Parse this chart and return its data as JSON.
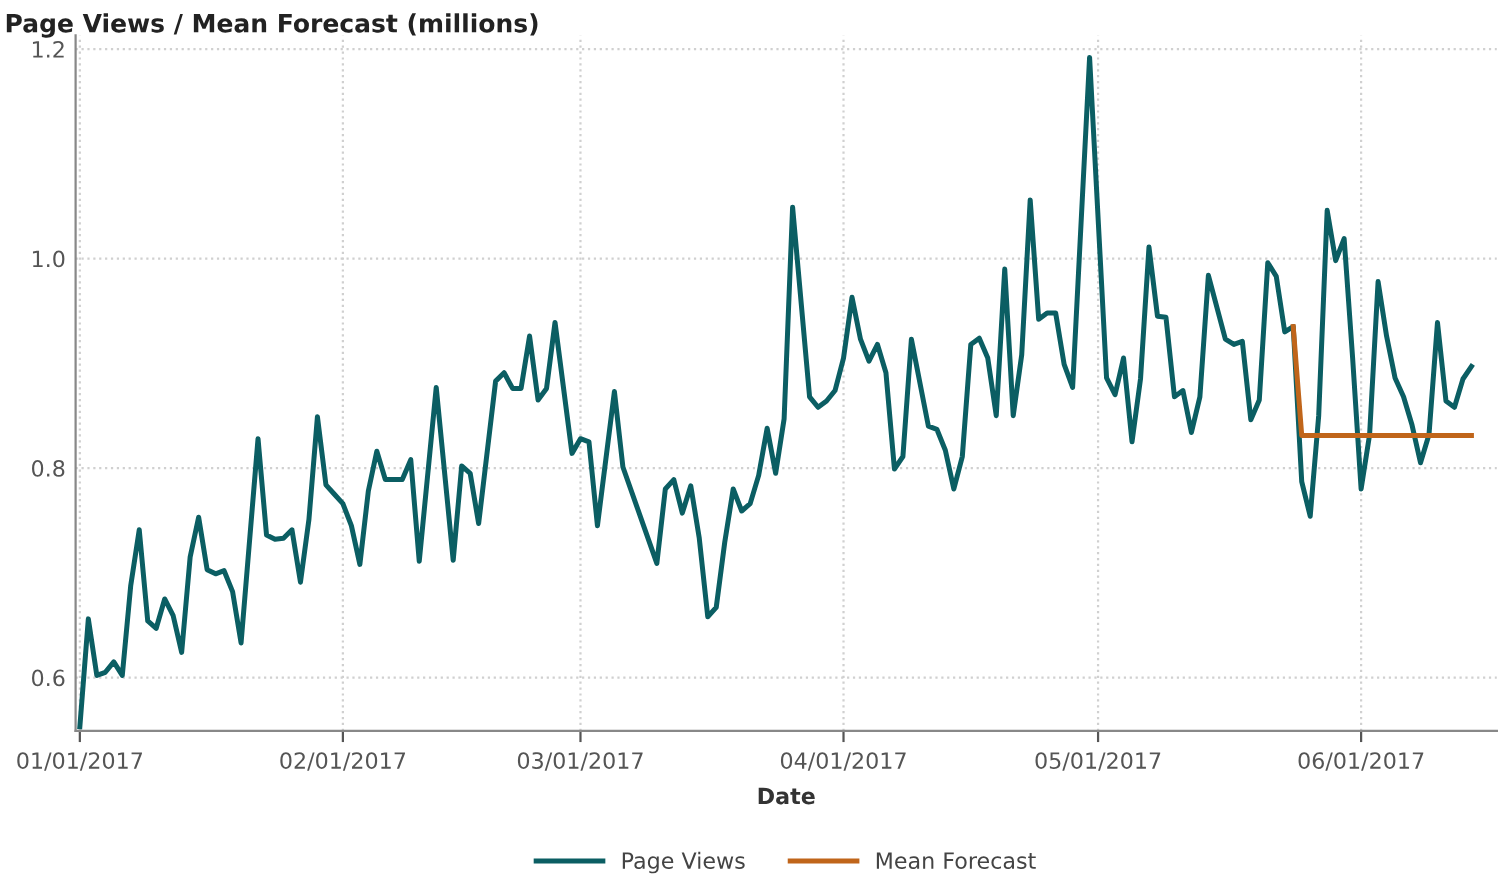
{
  "chart_data": {
    "type": "line",
    "title": "Page Views / Mean Forecast (millions)",
    "xlabel": "Date",
    "xlim": [
      "2016-12-31T12:00",
      "2017-06-17"
    ],
    "xticks": [
      {
        "value": "2017-01-01",
        "label": "01/01/2017"
      },
      {
        "value": "2017-02-01",
        "label": "02/01/2017"
      },
      {
        "value": "2017-03-01",
        "label": "03/01/2017"
      },
      {
        "value": "2017-04-01",
        "label": "04/01/2017"
      },
      {
        "value": "2017-05-01",
        "label": "05/01/2017"
      },
      {
        "value": "2017-06-01",
        "label": "06/01/2017"
      }
    ],
    "ylim": [
      0.549,
      1.213
    ],
    "yticks": [
      0.6,
      0.8,
      {
        "value": 1.0,
        "label": "1.0"
      },
      1.2
    ],
    "grid": true,
    "legend": "bottom",
    "marker": "none",
    "line_style": "solid",
    "series": [
      {
        "name": "Page Views",
        "color": "#0b5e63",
        "x": [
          "2017-01-01",
          "2017-01-02",
          "2017-01-03",
          "2017-01-04",
          "2017-01-05",
          "2017-01-06",
          "2017-01-07",
          "2017-01-08",
          "2017-01-09",
          "2017-01-10",
          "2017-01-11",
          "2017-01-12",
          "2017-01-13",
          "2017-01-14",
          "2017-01-15",
          "2017-01-16",
          "2017-01-17",
          "2017-01-18",
          "2017-01-19",
          "2017-01-20",
          "2017-01-22",
          "2017-01-23",
          "2017-01-24",
          "2017-01-25",
          "2017-01-26",
          "2017-01-27",
          "2017-01-28",
          "2017-01-29",
          "2017-01-30",
          "2017-01-31",
          "2017-02-01",
          "2017-02-02",
          "2017-02-03",
          "2017-02-04",
          "2017-02-05",
          "2017-02-06",
          "2017-02-07",
          "2017-02-08",
          "2017-02-09",
          "2017-02-10",
          "2017-02-12",
          "2017-02-14",
          "2017-02-15",
          "2017-02-16",
          "2017-02-17",
          "2017-02-19",
          "2017-02-20",
          "2017-02-21",
          "2017-02-22",
          "2017-02-23",
          "2017-02-24",
          "2017-02-25",
          "2017-02-26",
          "2017-02-28",
          "2017-03-01",
          "2017-03-02",
          "2017-03-03",
          "2017-03-05",
          "2017-03-06",
          "2017-03-10",
          "2017-03-11",
          "2017-03-12",
          "2017-03-13",
          "2017-03-14",
          "2017-03-15",
          "2017-03-16",
          "2017-03-17",
          "2017-03-18",
          "2017-03-19",
          "2017-03-20",
          "2017-03-21",
          "2017-03-22",
          "2017-03-23",
          "2017-03-24",
          "2017-03-25",
          "2017-03-26",
          "2017-03-28",
          "2017-03-29",
          "2017-03-30",
          "2017-03-31",
          "2017-04-01",
          "2017-04-02",
          "2017-04-03",
          "2017-04-04",
          "2017-04-05",
          "2017-04-06",
          "2017-04-07",
          "2017-04-08",
          "2017-04-09",
          "2017-04-11",
          "2017-04-12",
          "2017-04-13",
          "2017-04-14",
          "2017-04-15",
          "2017-04-16",
          "2017-04-17",
          "2017-04-18",
          "2017-04-19",
          "2017-04-20",
          "2017-04-21",
          "2017-04-22",
          "2017-04-23",
          "2017-04-24",
          "2017-04-25",
          "2017-04-26",
          "2017-04-27",
          "2017-04-28",
          "2017-04-30",
          "2017-05-02",
          "2017-05-03",
          "2017-05-04",
          "2017-05-05",
          "2017-05-06",
          "2017-05-07",
          "2017-05-08",
          "2017-05-09",
          "2017-05-10",
          "2017-05-11",
          "2017-05-12",
          "2017-05-13",
          "2017-05-14",
          "2017-05-16",
          "2017-05-17",
          "2017-05-18",
          "2017-05-19",
          "2017-05-20",
          "2017-05-21",
          "2017-05-22",
          "2017-05-23",
          "2017-05-24",
          "2017-05-25",
          "2017-05-26",
          "2017-05-27",
          "2017-05-28",
          "2017-05-29",
          "2017-05-30",
          "2017-05-31",
          "2017-06-01",
          "2017-06-02",
          "2017-06-03",
          "2017-06-04",
          "2017-06-05",
          "2017-06-06",
          "2017-06-07",
          "2017-06-08",
          "2017-06-09",
          "2017-06-10",
          "2017-06-11",
          "2017-06-12",
          "2017-06-13",
          "2017-06-14"
        ],
        "values": [
          0.553,
          0.656,
          0.602,
          0.605,
          0.615,
          0.602,
          0.688,
          0.741,
          0.654,
          0.647,
          0.675,
          0.659,
          0.624,
          0.715,
          0.753,
          0.703,
          0.699,
          0.702,
          0.682,
          0.633,
          0.828,
          0.736,
          0.732,
          0.733,
          0.741,
          0.691,
          0.751,
          0.849,
          0.784,
          0.775,
          0.766,
          0.745,
          0.708,
          0.778,
          0.816,
          0.789,
          0.789,
          0.789,
          0.808,
          0.711,
          0.877,
          0.712,
          0.802,
          0.795,
          0.747,
          0.883,
          0.891,
          0.876,
          0.876,
          0.926,
          0.865,
          0.876,
          0.939,
          0.814,
          0.828,
          0.825,
          0.745,
          0.873,
          0.801,
          0.709,
          0.78,
          0.789,
          0.757,
          0.783,
          0.733,
          0.658,
          0.667,
          0.729,
          0.78,
          0.759,
          0.766,
          0.793,
          0.838,
          0.795,
          0.847,
          1.049,
          0.868,
          0.858,
          0.864,
          0.874,
          0.905,
          0.963,
          0.923,
          0.902,
          0.918,
          0.891,
          0.799,
          0.811,
          0.923,
          0.84,
          0.837,
          0.817,
          0.78,
          0.811,
          0.918,
          0.924,
          0.905,
          0.85,
          0.99,
          0.85,
          0.908,
          1.056,
          0.942,
          0.948,
          0.948,
          0.899,
          0.877,
          1.192,
          0.886,
          0.87,
          0.905,
          0.825,
          0.885,
          1.011,
          0.945,
          0.944,
          0.868,
          0.874,
          0.834,
          0.868,
          0.984,
          0.923,
          0.918,
          0.921,
          0.846,
          0.865,
          0.996,
          0.983,
          0.93,
          0.935,
          0.787,
          0.754,
          0.85,
          1.046,
          0.998,
          1.019,
          0.905,
          0.78,
          0.832,
          0.978,
          0.926,
          0.886,
          0.868,
          0.841,
          0.805,
          0.832,
          0.939,
          0.864,
          0.858,
          0.885,
          0.897
        ]
      },
      {
        "name": "Mean Forecast",
        "color": "#c0651a",
        "x": [
          "2017-05-24",
          "2017-05-25",
          "2017-06-14"
        ],
        "values": [
          0.935,
          0.831,
          0.831
        ]
      }
    ]
  }
}
